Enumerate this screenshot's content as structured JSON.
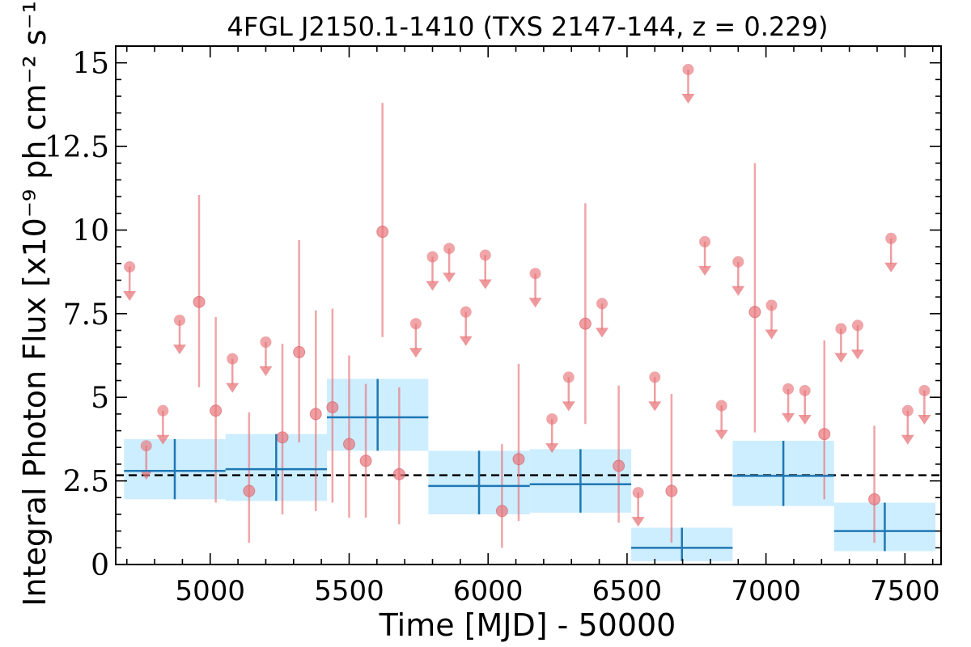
{
  "chart_data": {
    "type": "scatter",
    "title": "4FGL J2150.1-1410 (TXS 2147-144, z = 0.229)",
    "xlabel": "Time [MJD] - 50000",
    "ylabel": "Integral Photon Flux [x10⁻⁹ ph cm⁻² s⁻¹]",
    "xlim": [
      4660,
      7630
    ],
    "ylim": [
      0,
      15.5
    ],
    "xticks": [
      5000,
      5500,
      6000,
      6500,
      7000,
      7500
    ],
    "yticks": [
      0,
      2.5,
      5,
      7.5,
      10,
      12.5,
      15
    ],
    "ytick_labels": [
      "0",
      "2.5",
      "5",
      "7.5",
      "10",
      "12.5",
      "15"
    ],
    "xtick_labels": [
      "5000",
      "5500",
      "6000",
      "6500",
      "7000",
      "7500"
    ],
    "average_flux": 2.67,
    "grid": false,
    "colors": {
      "points": "#e8757a",
      "bins_fill": "#cdeeff",
      "bins_line": "#1f77b4",
      "average_line": "#000000"
    },
    "series": [
      {
        "kind": "detections",
        "points": [
          {
            "x": 4960,
            "y": 7.85,
            "lo": 5.3,
            "hi": 11.05
          },
          {
            "x": 5020,
            "y": 4.6,
            "lo": 1.85,
            "hi": 7.4
          },
          {
            "x": 5140,
            "y": 2.2,
            "lo": 0.65,
            "hi": 4.55
          },
          {
            "x": 5260,
            "y": 3.8,
            "lo": 1.5,
            "hi": 6.6
          },
          {
            "x": 5320,
            "y": 6.35,
            "lo": 3.65,
            "hi": 9.7
          },
          {
            "x": 5380,
            "y": 4.5,
            "lo": 1.6,
            "hi": 7.6
          },
          {
            "x": 5440,
            "y": 4.7,
            "lo": 1.85,
            "hi": 7.65
          },
          {
            "x": 5500,
            "y": 3.6,
            "lo": 1.4,
            "hi": 6.25
          },
          {
            "x": 5560,
            "y": 3.1,
            "lo": 1.4,
            "hi": 5.4
          },
          {
            "x": 5620,
            "y": 9.95,
            "lo": 6.8,
            "hi": 13.8
          },
          {
            "x": 5680,
            "y": 2.7,
            "lo": 1.2,
            "hi": 5.3
          },
          {
            "x": 6050,
            "y": 1.6,
            "lo": 0.5,
            "hi": 3.6
          },
          {
            "x": 6110,
            "y": 3.15,
            "lo": 1.3,
            "hi": 6.0
          },
          {
            "x": 6350,
            "y": 7.2,
            "lo": 4.2,
            "hi": 10.8
          },
          {
            "x": 6470,
            "y": 2.95,
            "lo": 1.25,
            "hi": 5.35
          },
          {
            "x": 6660,
            "y": 2.2,
            "lo": 0.65,
            "hi": 5.1
          },
          {
            "x": 6960,
            "y": 7.55,
            "lo": 3.95,
            "hi": 12.0
          },
          {
            "x": 7210,
            "y": 3.9,
            "lo": 1.95,
            "hi": 6.7
          },
          {
            "x": 7390,
            "y": 1.95,
            "lo": 0.65,
            "hi": 4.15
          }
        ]
      },
      {
        "kind": "upper_limits",
        "points": [
          {
            "x": 4710,
            "y": 8.9
          },
          {
            "x": 4770,
            "y": 3.55
          },
          {
            "x": 4830,
            "y": 4.6
          },
          {
            "x": 4890,
            "y": 7.3
          },
          {
            "x": 5080,
            "y": 6.15
          },
          {
            "x": 5200,
            "y": 6.65
          },
          {
            "x": 5740,
            "y": 7.2
          },
          {
            "x": 5800,
            "y": 9.2
          },
          {
            "x": 5860,
            "y": 9.45
          },
          {
            "x": 5920,
            "y": 7.55
          },
          {
            "x": 5990,
            "y": 9.25
          },
          {
            "x": 6170,
            "y": 8.7
          },
          {
            "x": 6230,
            "y": 4.35
          },
          {
            "x": 6290,
            "y": 5.6
          },
          {
            "x": 6410,
            "y": 7.8
          },
          {
            "x": 6540,
            "y": 2.15
          },
          {
            "x": 6600,
            "y": 5.6
          },
          {
            "x": 6720,
            "y": 14.8
          },
          {
            "x": 6780,
            "y": 9.65
          },
          {
            "x": 6840,
            "y": 4.75
          },
          {
            "x": 6900,
            "y": 9.05
          },
          {
            "x": 7020,
            "y": 7.75
          },
          {
            "x": 7080,
            "y": 5.25
          },
          {
            "x": 7140,
            "y": 5.2
          },
          {
            "x": 7270,
            "y": 7.05
          },
          {
            "x": 7330,
            "y": 7.15
          },
          {
            "x": 7450,
            "y": 9.75
          },
          {
            "x": 7510,
            "y": 4.6
          },
          {
            "x": 7570,
            "y": 5.2
          }
        ]
      },
      {
        "kind": "binned",
        "bins": [
          {
            "x0": 4690,
            "x1": 5055,
            "y": 2.8,
            "lo": 1.95,
            "hi": 3.75
          },
          {
            "x0": 5055,
            "x1": 5420,
            "y": 2.85,
            "lo": 1.9,
            "hi": 3.9
          },
          {
            "x0": 5420,
            "x1": 5785,
            "y": 4.4,
            "lo": 3.4,
            "hi": 5.55
          },
          {
            "x0": 5785,
            "x1": 6150,
            "y": 2.35,
            "lo": 1.5,
            "hi": 3.4
          },
          {
            "x0": 6150,
            "x1": 6515,
            "y": 2.4,
            "lo": 1.55,
            "hi": 3.45
          },
          {
            "x0": 6515,
            "x1": 6880,
            "y": 0.5,
            "lo": 0.1,
            "hi": 1.1
          },
          {
            "x0": 6880,
            "x1": 7245,
            "y": 2.65,
            "lo": 1.75,
            "hi": 3.7
          },
          {
            "x0": 7245,
            "x1": 7610,
            "y": 1.0,
            "lo": 0.4,
            "hi": 1.85
          }
        ]
      }
    ]
  }
}
